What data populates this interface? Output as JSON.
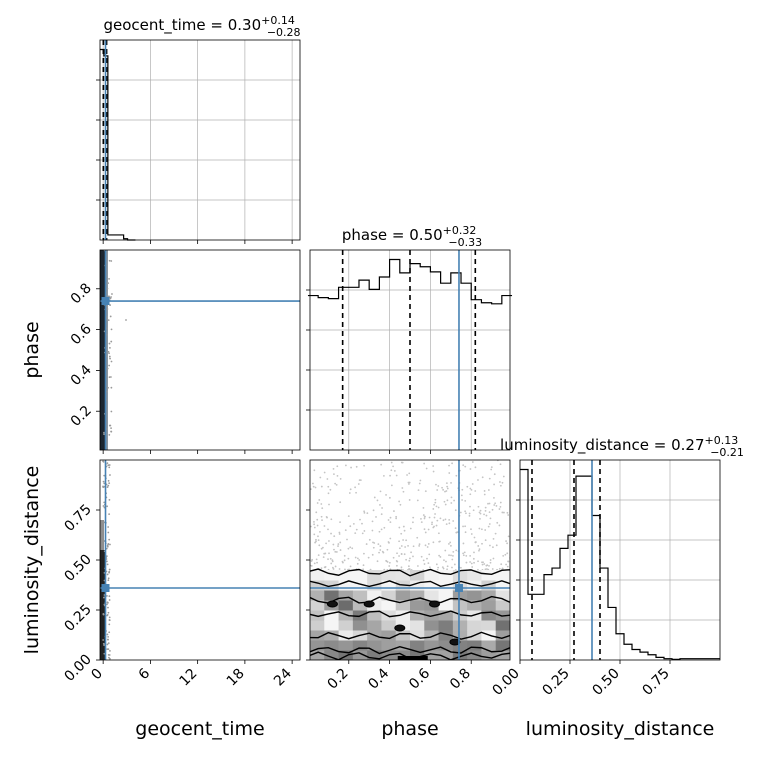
{
  "colors": {
    "truth": "#4682b4",
    "hist": "#000000",
    "grid": "#b0b0b0",
    "points": "#9a9a9a"
  },
  "chart_data": {
    "type": "corner",
    "parameters": [
      "geocent_time",
      "phase",
      "luminosity_distance"
    ],
    "truths": {
      "geocent_time": 0.3,
      "phase": 0.74,
      "luminosity_distance": 0.36
    },
    "titles": [
      {
        "parameter": "geocent_time",
        "base": "geocent_time = 0.30",
        "plus": "+0.14",
        "minus": "−0.28"
      },
      {
        "parameter": "phase",
        "base": "phase = 0.50",
        "plus": "+0.32",
        "minus": "−0.33"
      },
      {
        "parameter": "luminosity_distance",
        "base": "luminosity_distance = 0.27",
        "plus": "+0.13",
        "minus": "−0.21"
      }
    ],
    "axis_labels": {
      "x": [
        "geocent_time",
        "phase",
        "luminosity_distance"
      ],
      "y": [
        "phase",
        "luminosity_distance"
      ]
    },
    "ranges": {
      "geocent_time": [
        -0.4,
        25
      ],
      "phase": [
        0.01,
        0.99
      ],
      "luminosity_distance": [
        0.0,
        1.0
      ]
    },
    "ticks": {
      "geocent_time": [
        "0",
        "6",
        "12",
        "18",
        "24"
      ],
      "phase": [
        "0.2",
        "0.4",
        "0.6",
        "0.8"
      ],
      "luminosity_distance": [
        "0.00",
        "0.25",
        "0.50",
        "0.75"
      ]
    },
    "diagonal_histograms": [
      {
        "parameter": "geocent_time",
        "bins": [
          -0.4,
          0.1,
          0.6,
          1.1,
          1.6,
          2.1,
          2.6,
          3.1,
          4.1
        ],
        "counts": [
          300,
          290,
          8,
          8,
          8,
          8,
          2,
          0
        ],
        "quantiles": [
          0.02,
          0.3,
          0.44
        ]
      },
      {
        "parameter": "phase",
        "bins": [
          0.0,
          0.05,
          0.1,
          0.15,
          0.2,
          0.25,
          0.3,
          0.35,
          0.4,
          0.45,
          0.5,
          0.55,
          0.6,
          0.65,
          0.7,
          0.75,
          0.8,
          0.85,
          0.9,
          0.95,
          1.0
        ],
        "counts": [
          150,
          148,
          147,
          158,
          158,
          165,
          156,
          168,
          185,
          172,
          181,
          178,
          173,
          162,
          172,
          162,
          146,
          143,
          142,
          150
        ],
        "quantiles": [
          0.17,
          0.5,
          0.82
        ]
      },
      {
        "parameter": "luminosity_distance",
        "bins": [
          0.0,
          0.04,
          0.08,
          0.12,
          0.16,
          0.2,
          0.24,
          0.28,
          0.32,
          0.36,
          0.4,
          0.44,
          0.48,
          0.52,
          0.56,
          0.6,
          0.64,
          0.68,
          0.72,
          0.76,
          0.8,
          0.9,
          1.0
        ],
        "counts": [
          145,
          50,
          50,
          65,
          70,
          85,
          95,
          140,
          140,
          110,
          70,
          40,
          20,
          12,
          8,
          6,
          4,
          2,
          1,
          0.5,
          1,
          1
        ],
        "quantiles": [
          0.06,
          0.27,
          0.4
        ]
      }
    ]
  }
}
